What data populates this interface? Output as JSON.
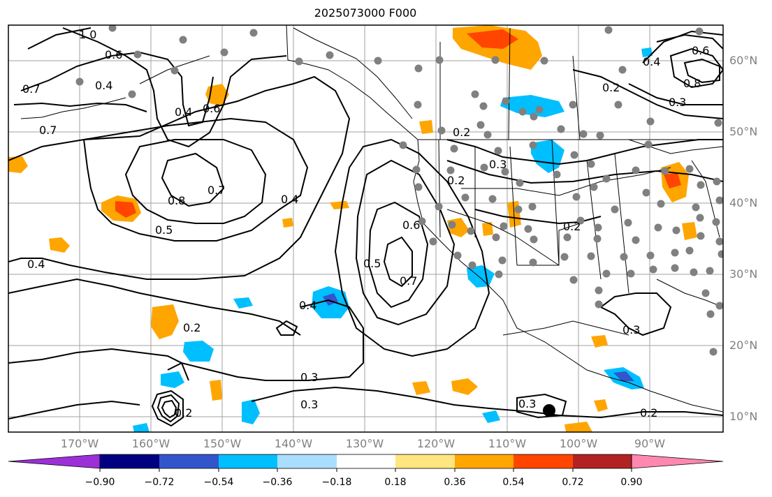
{
  "title": "2025073000 F000",
  "colors": {
    "land_border": "#000000",
    "grid": "#a0a0a0",
    "station": "#808080",
    "axis_label": "#808080"
  },
  "latitude_labels": [
    "60°N",
    "50°N",
    "40°N",
    "30°N",
    "20°N",
    "10°N"
  ],
  "longitude_labels": [
    "170°W",
    "160°W",
    "150°W",
    "140°W",
    "130°W",
    "120°W",
    "110°W",
    "100°W",
    "90°W"
  ],
  "contour_labels": [
    "1.0",
    "0.6",
    "0.4",
    "0.7",
    "0.4",
    "0.6",
    "0.7",
    "0.8",
    "0.5",
    "0.4",
    "0.4",
    "0.6",
    "0.5",
    "0.7",
    "0.4",
    "0.2",
    "0.2",
    "0.2",
    "0.3",
    "0.2",
    "0.3",
    "0.3",
    "0.3",
    "0.2",
    "0.3",
    "0.6",
    "0.4",
    "0.8",
    "0.2",
    "0.3",
    "0.2",
    "0.7"
  ],
  "colorbar": {
    "colors": [
      "#9b30d9",
      "#000080",
      "#3355cc",
      "#00bfff",
      "#aadeff",
      "#ffffff",
      "#ffe680",
      "#ffa500",
      "#ff4500",
      "#b22222",
      "#ff88b0",
      "#ff88b0"
    ],
    "tick_labels": [
      "−0.90",
      "−0.72",
      "−0.54",
      "−0.36",
      "−0.18",
      "0.18",
      "0.36",
      "0.54",
      "0.72",
      "0.90"
    ]
  }
}
